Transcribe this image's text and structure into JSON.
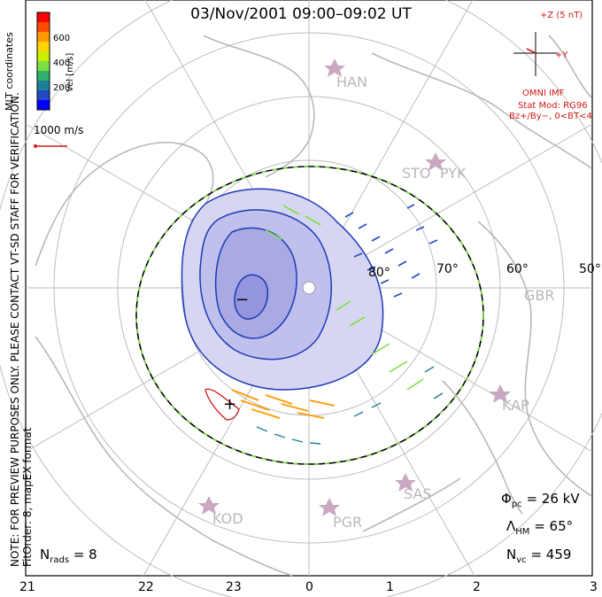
{
  "title": "03/Nov/2001 09:00–09:02 UT",
  "colorbar": {
    "label": "Vel [m/s]",
    "ticks": [
      "600",
      "400",
      "200"
    ],
    "colors": [
      "#ff0000",
      "#ff4d00",
      "#ff9a00",
      "#ffd200",
      "#c9f000",
      "#7be042",
      "#2fb06f",
      "#1f7f9a",
      "#2348c4",
      "#0000ff"
    ]
  },
  "coordinates_label": "MLT coordinates",
  "scale_label": "1000 m/s",
  "side_note": "NOTE: FOR PREVIEW PURPOSES ONLY. PLEASE CONTACT VT-SD STAFF FOR VERIFICATION.",
  "fit_order": "FitOrder: 8, mapEX format",
  "imf": {
    "z_label": "+Z (5 nT)",
    "y_label": "+Y",
    "source": "OMNI IMF",
    "stat_mod": "Stat Mod: RG96",
    "conditions": "Bz+/By−, 0<BT<4"
  },
  "latitudes": [
    "80°",
    "70°",
    "60°",
    "50°"
  ],
  "stations": [
    "HAN",
    "STO",
    "PYK",
    "GBR",
    "KAP",
    "SAS",
    "PGR",
    "KOD"
  ],
  "potential_markers": [
    "−",
    "+"
  ],
  "stats": {
    "phi_symbol": "Φ",
    "phi_sub": "pc",
    "phi_value": "= 26 kV",
    "lambda_symbol": "Λ",
    "lambda_sub": "HM",
    "lambda_value": "= 65°",
    "nvc_symbol": "N",
    "nvc_sub": "vc",
    "nvc_value": "= 459",
    "nrads_symbol": "N",
    "nrads_sub": "rads",
    "nrads_value": "= 8"
  },
  "mlt_labels": [
    "21",
    "22",
    "23",
    "0",
    "1",
    "2",
    "3"
  ]
}
